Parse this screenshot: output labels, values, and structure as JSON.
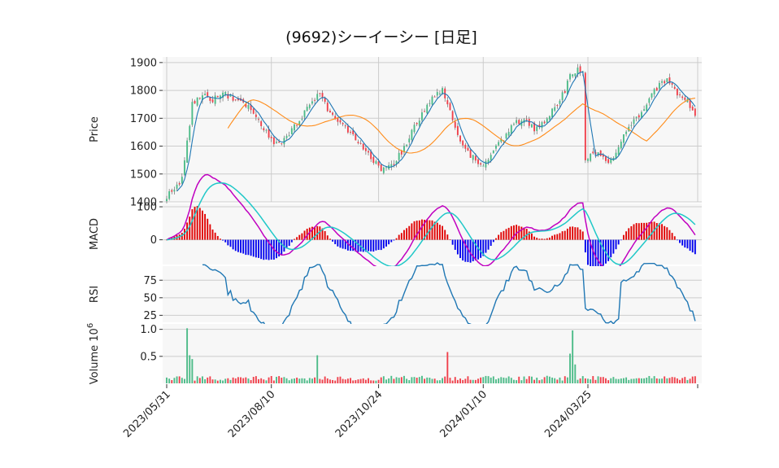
{
  "chart_data": {
    "type": "candlestick",
    "title": "(9692)シーイーシー [日足]",
    "x_tick_labels": [
      "2023/05/31",
      "2023/08/10",
      "2023/10/24",
      "2024/01/10",
      "2024/03/25"
    ],
    "panels": [
      {
        "name": "price",
        "ylabel": "Price",
        "ylim": [
          1400,
          1920
        ],
        "yticks": [
          "1400",
          "1500",
          "1600",
          "1700",
          "1800",
          "1900"
        ],
        "anchors": [
          [
            0,
            1420
          ],
          [
            6,
            1480
          ],
          [
            10,
            1750
          ],
          [
            14,
            1790
          ],
          [
            17,
            1760
          ],
          [
            22,
            1795
          ],
          [
            27,
            1760
          ],
          [
            33,
            1740
          ],
          [
            37,
            1680
          ],
          [
            41,
            1620
          ],
          [
            45,
            1610
          ],
          [
            49,
            1660
          ],
          [
            53,
            1700
          ],
          [
            57,
            1770
          ],
          [
            60,
            1780
          ],
          [
            64,
            1720
          ],
          [
            68,
            1680
          ],
          [
            72,
            1650
          ],
          [
            76,
            1600
          ],
          [
            80,
            1560
          ],
          [
            84,
            1520
          ],
          [
            88,
            1530
          ],
          [
            92,
            1580
          ],
          [
            96,
            1650
          ],
          [
            100,
            1720
          ],
          [
            104,
            1770
          ],
          [
            108,
            1800
          ],
          [
            111,
            1730
          ],
          [
            114,
            1650
          ],
          [
            117,
            1580
          ],
          [
            120,
            1560
          ],
          [
            124,
            1530
          ],
          [
            128,
            1590
          ],
          [
            132,
            1630
          ],
          [
            136,
            1680
          ],
          [
            140,
            1700
          ],
          [
            144,
            1660
          ],
          [
            148,
            1680
          ],
          [
            152,
            1740
          ],
          [
            156,
            1800
          ],
          [
            158,
            1850
          ],
          [
            161,
            1880
          ],
          [
            163,
            1860
          ],
          [
            164,
            1560
          ],
          [
            168,
            1580
          ],
          [
            172,
            1550
          ],
          [
            175,
            1550
          ],
          [
            178,
            1620
          ],
          [
            182,
            1680
          ],
          [
            186,
            1720
          ],
          [
            190,
            1790
          ],
          [
            194,
            1830
          ],
          [
            196,
            1840
          ],
          [
            200,
            1780
          ],
          [
            204,
            1770
          ],
          [
            207,
            1700
          ]
        ],
        "sma_long_label": "moving average (orange)",
        "sma_short_label": "moving average (blue)"
      },
      {
        "name": "macd",
        "ylabel": "MACD",
        "ylim": [
          -75,
          110
        ],
        "yticks": [
          "0",
          "100"
        ]
      },
      {
        "name": "rsi",
        "ylabel": "RSI",
        "ylim": [
          15,
          95
        ],
        "yticks": [
          "25",
          "50",
          "75"
        ]
      },
      {
        "name": "volume",
        "ylabel": "Volume",
        "ylabel_exponent": "10",
        "ylabel_power": "6",
        "ylim": [
          0,
          1.1
        ],
        "yticks": [
          "0.5",
          "1.0"
        ],
        "spikes": [
          [
            8,
            1.02
          ],
          [
            9,
            0.52
          ],
          [
            10,
            0.45
          ],
          [
            59,
            0.52
          ],
          [
            110,
            0.58
          ],
          [
            158,
            0.55
          ],
          [
            159,
            0.98
          ],
          [
            160,
            0.35
          ]
        ]
      }
    ],
    "colors": {
      "up": "#4cbb88",
      "down": "#f0404b",
      "sma_short": "#1f77b4",
      "sma_long": "#ff8c1a",
      "macd_line": "#c000c0",
      "signal_line": "#20c8c8",
      "hist_pos": "#e00000",
      "hist_neg": "#0000ee",
      "rsi_line": "#1f77b4",
      "grid": "#cccccc",
      "panel_bg": "#f7f7f7"
    }
  }
}
